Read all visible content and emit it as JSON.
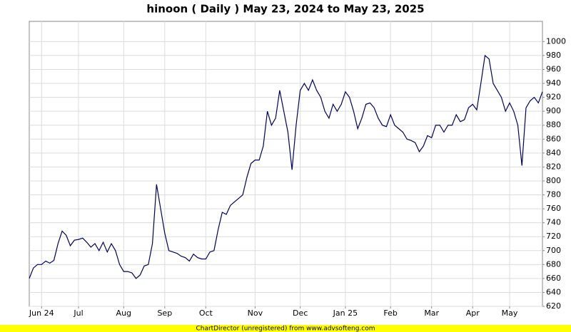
{
  "chart_data": {
    "type": "line",
    "title": "hinoon ( Daily ) May 23, 2024 to May 23, 2025",
    "footer": "ChartDirector (unregistered) from www.advsofteng.com",
    "categories": [
      null,
      null,
      null,
      "Jun 24",
      null,
      null,
      null,
      null,
      null,
      null,
      null,
      null,
      "Jul",
      null,
      null,
      null,
      null,
      null,
      null,
      null,
      null,
      null,
      null,
      "Aug",
      null,
      null,
      null,
      null,
      null,
      null,
      null,
      null,
      null,
      "Sep",
      null,
      null,
      null,
      null,
      null,
      null,
      null,
      null,
      null,
      "Oct",
      null,
      null,
      null,
      null,
      null,
      null,
      null,
      null,
      null,
      null,
      null,
      "Nov",
      null,
      null,
      null,
      null,
      null,
      null,
      null,
      null,
      null,
      null,
      "Dec",
      null,
      null,
      null,
      null,
      null,
      null,
      null,
      null,
      null,
      null,
      "Jan 25",
      null,
      null,
      null,
      null,
      null,
      null,
      null,
      null,
      null,
      null,
      "Feb",
      null,
      null,
      null,
      null,
      null,
      null,
      null,
      null,
      null,
      "Mar",
      null,
      null,
      null,
      null,
      null,
      null,
      null,
      null,
      null,
      "Apr",
      null,
      null,
      null,
      null,
      null,
      null,
      null,
      null,
      "May",
      null,
      null,
      null,
      null,
      null,
      null,
      null,
      null
    ],
    "series": [
      {
        "name": "hinoon",
        "color": "#000060",
        "values": [
          660,
          675,
          680,
          680,
          685,
          682,
          686,
          710,
          728,
          722,
          707,
          715,
          716,
          718,
          712,
          705,
          710,
          700,
          712,
          698,
          710,
          700,
          680,
          670,
          670,
          668,
          660,
          665,
          678,
          680,
          710,
          795,
          760,
          725,
          700,
          698,
          696,
          692,
          690,
          685,
          695,
          690,
          688,
          688,
          698,
          700,
          730,
          755,
          752,
          765,
          770,
          775,
          780,
          805,
          825,
          830,
          830,
          850,
          900,
          880,
          890,
          930,
          900,
          870,
          816,
          880,
          930,
          940,
          930,
          945,
          930,
          920,
          900,
          890,
          910,
          900,
          910,
          928,
          920,
          900,
          875,
          890,
          910,
          912,
          905,
          890,
          880,
          878,
          895,
          880,
          875,
          870,
          860,
          858,
          855,
          842,
          850,
          865,
          862,
          880,
          880,
          870,
          880,
          880,
          895,
          885,
          888,
          905,
          910,
          902,
          940,
          980,
          975,
          940,
          930,
          920,
          900,
          912,
          900,
          880,
          822,
          905,
          915,
          920,
          912,
          928
        ]
      }
    ],
    "ylim": [
      620,
      1029
    ],
    "yticks": [
      620,
      640,
      660,
      680,
      700,
      720,
      740,
      760,
      780,
      800,
      820,
      840,
      860,
      880,
      900,
      920,
      940,
      960,
      980,
      1000
    ],
    "grid": true
  }
}
